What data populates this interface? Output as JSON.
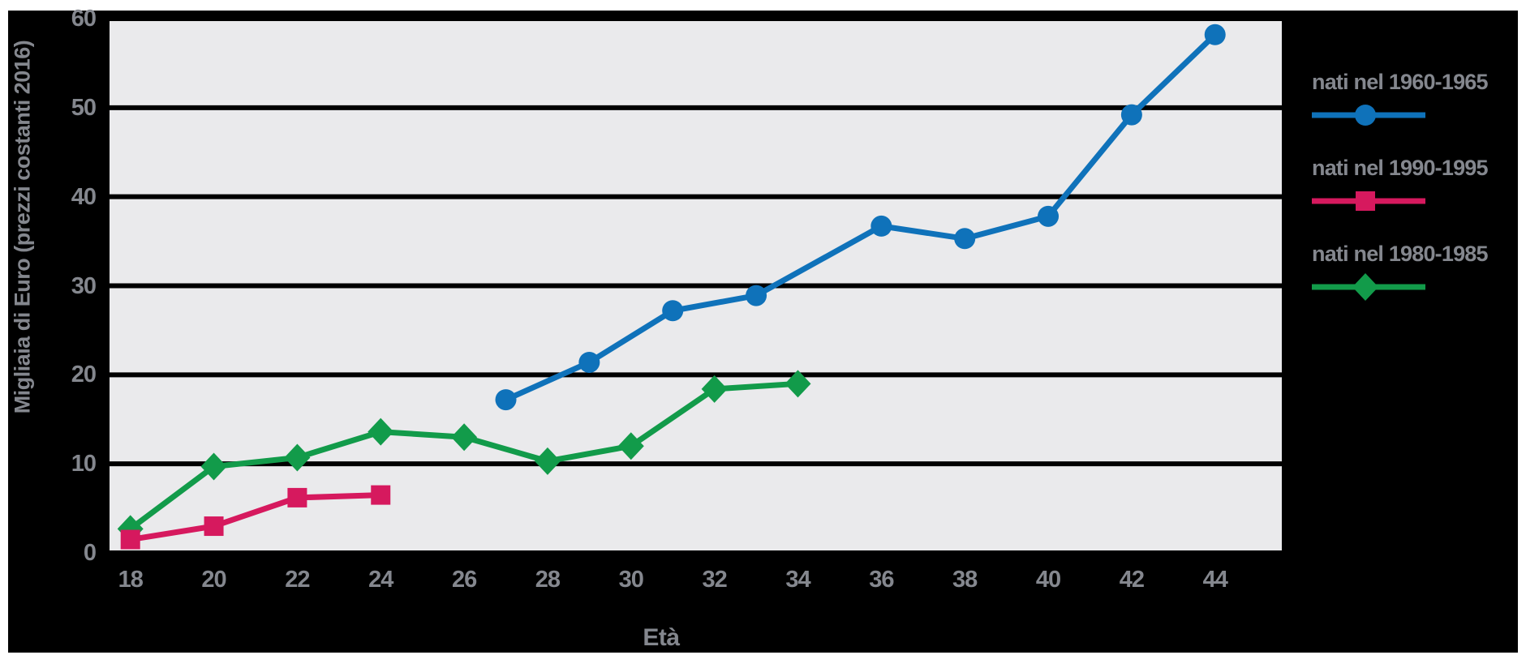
{
  "figure": {
    "y_axis_title": "Migliaia di Euro (prezzi costanti 2016)",
    "x_axis_title": "Età"
  },
  "colors": {
    "background": "#000000",
    "page": "#ffffff",
    "plot_background": "#eaeaec",
    "gridline": "#000000",
    "text": "#84878e",
    "series_blue": "#0f72ba",
    "series_pink": "#d6195e",
    "series_green": "#129b4a"
  },
  "chart_data": {
    "type": "line",
    "title": "",
    "xlabel": "Età",
    "ylabel": "Migliaia di Euro (prezzi costanti 2016)",
    "xlim": [
      17.5,
      45.6
    ],
    "ylim": [
      0,
      60
    ],
    "x_ticks": [
      18,
      20,
      22,
      24,
      26,
      28,
      30,
      32,
      34,
      36,
      38,
      40,
      42,
      44
    ],
    "y_ticks": [
      0,
      10,
      20,
      30,
      40,
      50,
      60
    ],
    "grid": "horizontal-only",
    "legend_position": "right",
    "series": [
      {
        "name": "nati nel 1960-1965",
        "color": "#0f72ba",
        "marker": "circle",
        "x": [
          27,
          29,
          31,
          33,
          36,
          38,
          40,
          42,
          44
        ],
        "y": [
          17.2,
          21.4,
          27.2,
          28.9,
          36.7,
          35.3,
          37.8,
          49.2,
          58.2
        ]
      },
      {
        "name": "nati nel 1990-1995",
        "color": "#d6195e",
        "marker": "square",
        "x": [
          18,
          20,
          22,
          24
        ],
        "y": [
          1.5,
          3.0,
          6.2,
          6.5
        ]
      },
      {
        "name": "nati nel 1980-1985",
        "color": "#129b4a",
        "marker": "diamond",
        "x": [
          18,
          20,
          22,
          24,
          26,
          28,
          30,
          32,
          34
        ],
        "y": [
          2.7,
          9.7,
          10.7,
          13.6,
          13.0,
          10.3,
          12.0,
          18.4,
          19.0
        ]
      }
    ]
  }
}
